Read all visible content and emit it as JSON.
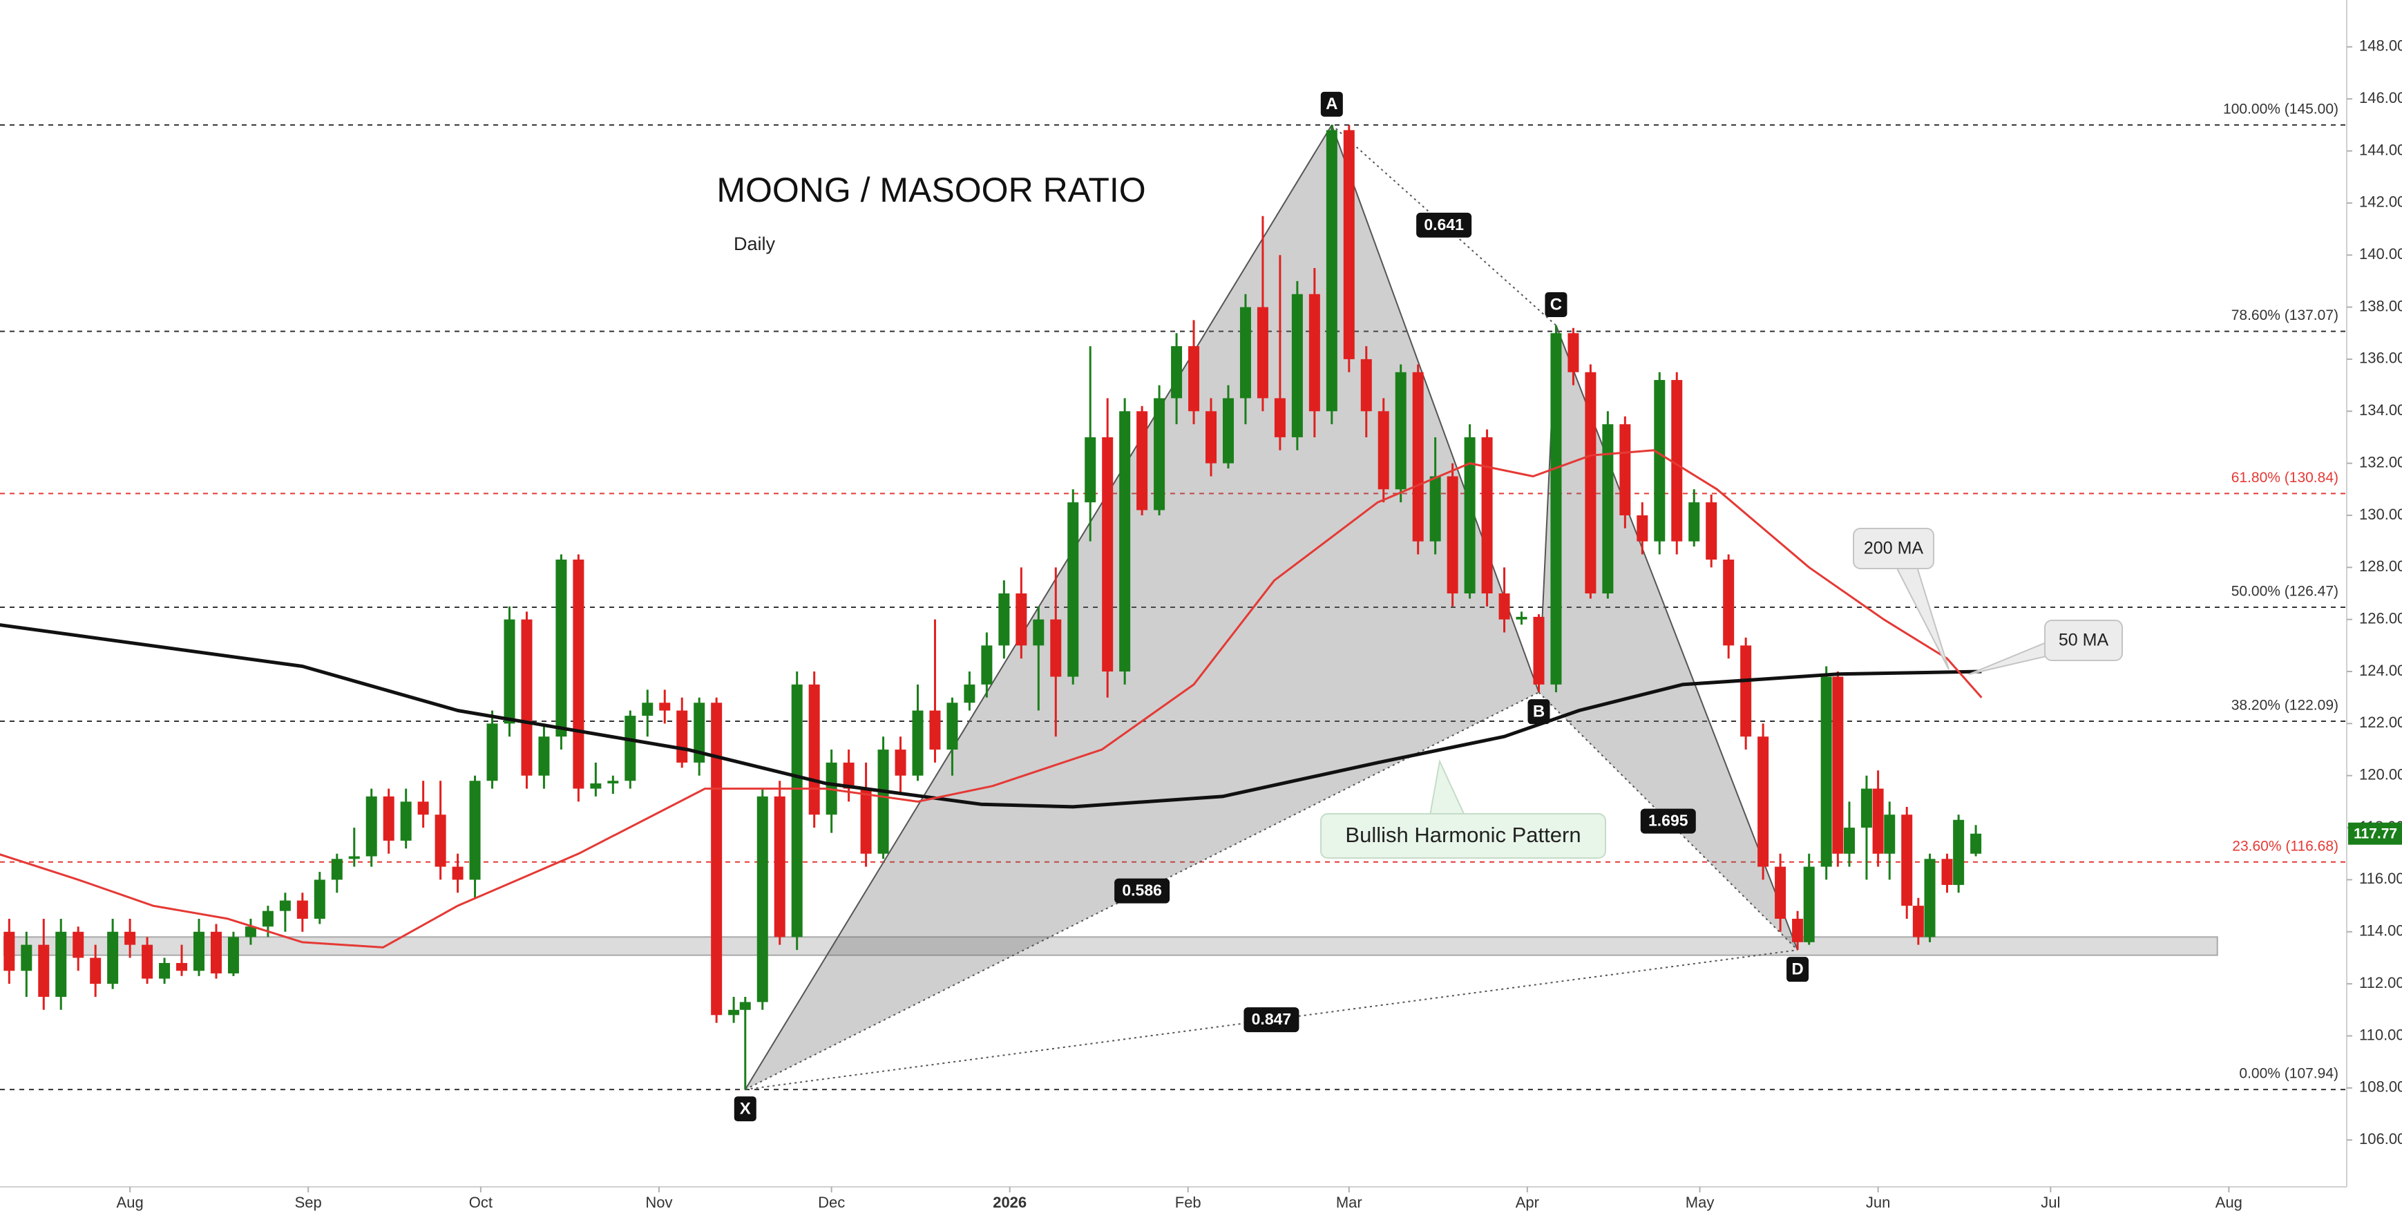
{
  "chart_data": {
    "type": "candlestick",
    "title": "MOONG / MASOOR RATIO",
    "subtitle": "Daily",
    "up_color": "#1a7f1a",
    "down_color": "#e0201f",
    "xlim": [
      8.4,
      416.5
    ],
    "ylim": [
      104.2,
      149.8
    ],
    "xticks": [
      {
        "value": 31,
        "label": "Aug"
      },
      {
        "value": 62,
        "label": "Sep"
      },
      {
        "value": 92,
        "label": "Oct"
      },
      {
        "value": 123,
        "label": "Nov"
      },
      {
        "value": 153,
        "label": "Dec"
      },
      {
        "value": 184,
        "label": "2026"
      },
      {
        "value": 215,
        "label": "Feb"
      },
      {
        "value": 243,
        "label": "Mar"
      },
      {
        "value": 274,
        "label": "Apr"
      },
      {
        "value": 304,
        "label": "May"
      },
      {
        "value": 335,
        "label": "Jun"
      },
      {
        "value": 365,
        "label": "Jul"
      },
      {
        "value": 396,
        "label": "Aug"
      }
    ],
    "yticks": [
      {
        "value": 106,
        "label": "106.00"
      },
      {
        "value": 108,
        "label": "108.00"
      },
      {
        "value": 110,
        "label": "110.00"
      },
      {
        "value": 112,
        "label": "112.00"
      },
      {
        "value": 114,
        "label": "114.00"
      },
      {
        "value": 116,
        "label": "116.00"
      },
      {
        "value": 118,
        "label": "118.00"
      },
      {
        "value": 120,
        "label": "120.00"
      },
      {
        "value": 122,
        "label": "122.00"
      },
      {
        "value": 124,
        "label": "124.00"
      },
      {
        "value": 126,
        "label": "126.00"
      },
      {
        "value": 128,
        "label": "128.00"
      },
      {
        "value": 130,
        "label": "130.00"
      },
      {
        "value": 132,
        "label": "132.00"
      },
      {
        "value": 134,
        "label": "134.00"
      },
      {
        "value": 136,
        "label": "136.00"
      },
      {
        "value": 138,
        "label": "138.00"
      },
      {
        "value": 140,
        "label": "140.00"
      },
      {
        "value": 142,
        "label": "142.00"
      },
      {
        "value": 144,
        "label": "144.00"
      },
      {
        "value": 146,
        "label": "146.00"
      },
      {
        "value": 148,
        "label": "148.00"
      }
    ],
    "candles": {
      "x": [
        10,
        13,
        16,
        19,
        22,
        25,
        28,
        31,
        34,
        37,
        40,
        43,
        46,
        49,
        52,
        55,
        58,
        61,
        64,
        67,
        70,
        73,
        76,
        79,
        82,
        85,
        88,
        91,
        94,
        97,
        100,
        103,
        106,
        109,
        112,
        115,
        118,
        121,
        124,
        127,
        130,
        133,
        136,
        138,
        141,
        144,
        147,
        150,
        153,
        156,
        159,
        162,
        165,
        168,
        171,
        174,
        177,
        180,
        183,
        186,
        189,
        192,
        195,
        198,
        201,
        204,
        207,
        210,
        213,
        216,
        219,
        222,
        225,
        228,
        231,
        234,
        237,
        240,
        243,
        246,
        249,
        252,
        255,
        258,
        261,
        264,
        267,
        270,
        273,
        276,
        279,
        282,
        285,
        288,
        291,
        294,
        297,
        300,
        303,
        306,
        309,
        312,
        315,
        318,
        321,
        323,
        326,
        328,
        330,
        333,
        335,
        337,
        340,
        342,
        344,
        347,
        349,
        352
      ],
      "open": [
        114,
        112.5,
        113.5,
        111.5,
        114,
        113,
        112,
        114,
        113.5,
        112.2,
        112.8,
        112.5,
        114,
        112.4,
        113.8,
        114.2,
        114.8,
        115.2,
        114.5,
        116,
        116.8,
        116.9,
        119.2,
        117.5,
        119,
        118.5,
        116.5,
        116,
        119.8,
        122,
        126,
        120,
        121.5,
        128.3,
        119.5,
        119.7,
        119.8,
        122.3,
        122.8,
        122.5,
        120.5,
        122.8,
        110.8,
        111,
        111.3,
        119.2,
        113.8,
        123.5,
        118.5,
        120.5,
        119.5,
        117,
        121,
        120,
        122.5,
        121,
        122.8,
        123.5,
        125,
        127,
        125,
        126,
        123.8,
        130.5,
        133,
        124,
        134,
        130.2,
        134.5,
        136.5,
        134,
        132,
        134.5,
        138,
        134.5,
        133,
        138.5,
        134,
        144.8,
        136,
        134,
        131,
        135.5,
        129,
        131.5,
        127,
        133,
        127,
        126,
        126.1,
        123.5,
        137,
        135.5,
        127,
        133.5,
        130,
        129,
        135.2,
        129,
        130.5,
        128.3,
        125,
        121.5,
        116.5,
        114.5,
        113.6,
        116.5,
        123.8,
        117,
        118,
        119.5,
        117,
        118.5,
        115,
        113.8,
        116.8,
        115.8,
        117
      ],
      "high": [
        114.5,
        114,
        114.5,
        114.5,
        114.2,
        113.5,
        114.5,
        114.5,
        113.8,
        113,
        113.5,
        114.5,
        114.3,
        114,
        114.5,
        115,
        115.5,
        115.5,
        116.3,
        117,
        118,
        119.5,
        119.5,
        119.5,
        119.8,
        119.8,
        117,
        120,
        122.5,
        126.5,
        126.3,
        122,
        128.5,
        128.5,
        120.5,
        120,
        122.5,
        123.3,
        123.3,
        123,
        123,
        123,
        111.5,
        111.5,
        119.5,
        119.8,
        124,
        124,
        121,
        121,
        120.5,
        121.5,
        121.5,
        123.5,
        126,
        123,
        124,
        125.5,
        127.5,
        128,
        126.5,
        128,
        131,
        136.5,
        134.5,
        134.5,
        134.2,
        135,
        137,
        137.5,
        134.5,
        135,
        138.5,
        141.5,
        140,
        139,
        139.5,
        145,
        145,
        136.5,
        134.5,
        135.8,
        135.8,
        133,
        132,
        133.5,
        133.3,
        128,
        126.3,
        126.2,
        137.3,
        137.2,
        135.8,
        134,
        133.8,
        130.5,
        135.5,
        135.5,
        131,
        130.8,
        128.5,
        125.3,
        122,
        117,
        114.8,
        117,
        124.2,
        124,
        119,
        120,
        120.2,
        119,
        118.8,
        115.3,
        117,
        117,
        118.5,
        118.1
      ],
      "low": [
        112,
        111.5,
        111,
        111,
        112.5,
        111.5,
        111.8,
        113,
        112,
        112,
        112.3,
        112.3,
        112.2,
        112.3,
        113.5,
        113.8,
        114,
        114,
        114.3,
        115.5,
        116.5,
        116.5,
        117,
        117.2,
        118,
        116,
        115.5,
        115.3,
        119.5,
        121.5,
        119.5,
        119.5,
        121,
        119,
        119.2,
        119.3,
        119.5,
        121.5,
        122,
        120.3,
        120,
        110.5,
        110.5,
        107.94,
        111,
        113.5,
        113.3,
        118,
        117.8,
        119,
        116.5,
        116.8,
        119.3,
        119.8,
        120.5,
        120,
        122.5,
        123,
        124.5,
        124.5,
        122.5,
        121.5,
        123.5,
        129,
        123,
        123.5,
        130,
        130,
        133.5,
        133.5,
        131.5,
        131.8,
        133.5,
        134,
        132.5,
        132.5,
        133,
        133.5,
        135.5,
        133,
        130.5,
        130.5,
        128.5,
        128.5,
        126.5,
        126.8,
        126.5,
        125.5,
        125.8,
        123.2,
        123.2,
        135,
        126.8,
        126.8,
        129.5,
        128.5,
        128.5,
        128.5,
        128.8,
        128,
        124.5,
        121,
        116,
        114,
        113.3,
        113.5,
        116,
        116.5,
        116.5,
        116,
        116.5,
        116,
        114.5,
        113.5,
        113.6,
        115.5,
        115.5,
        116.9
      ],
      "close": [
        112.5,
        113.5,
        111.5,
        114,
        113,
        112,
        114,
        113.5,
        112.2,
        112.8,
        112.5,
        114,
        112.4,
        113.8,
        114.2,
        114.8,
        115.2,
        114.5,
        116,
        116.8,
        116.9,
        119.2,
        117.5,
        119,
        118.5,
        116.5,
        116,
        119.8,
        122,
        126,
        120,
        121.5,
        128.3,
        119.5,
        119.7,
        119.8,
        122.3,
        122.8,
        122.5,
        120.5,
        122.8,
        110.8,
        111,
        111.3,
        119.2,
        113.8,
        123.5,
        118.5,
        120.5,
        119.5,
        117,
        121,
        120,
        122.5,
        121,
        122.8,
        123.5,
        125,
        127,
        125,
        126,
        123.8,
        130.5,
        133,
        124,
        134,
        130.2,
        134.5,
        136.5,
        134,
        132,
        134.5,
        138,
        134.5,
        133,
        138.5,
        134,
        144.8,
        136,
        134,
        131,
        135.5,
        129,
        131.5,
        127,
        133,
        127,
        126,
        126.1,
        123.5,
        137,
        135.5,
        127,
        133.5,
        130,
        129,
        135.2,
        129,
        130.5,
        128.3,
        125,
        121.5,
        116.5,
        114.5,
        113.6,
        116.5,
        123.8,
        117,
        118,
        119.5,
        117,
        118.5,
        115,
        113.8,
        116.8,
        115.8,
        118.3,
        117.77
      ]
    },
    "ma_series": [
      {
        "name": "200 MA",
        "color": "#111111",
        "x": [
          8,
          61,
          88,
          128,
          152,
          179,
          195,
          221,
          248,
          270,
          283,
          301,
          328,
          353
        ],
        "values": [
          125.8,
          124.2,
          122.5,
          121,
          119.7,
          118.9,
          118.8,
          119.2,
          120.5,
          121.5,
          122.5,
          123.5,
          123.9,
          124
        ]
      },
      {
        "name": "50 MA",
        "color": "#e53935",
        "x": [
          8,
          22,
          35,
          48,
          61,
          75,
          88,
          109,
          131,
          152,
          168,
          181,
          200,
          216,
          230,
          248,
          264,
          275,
          285,
          296,
          307,
          323,
          336,
          347,
          353
        ],
        "values": [
          117,
          116,
          115,
          114.5,
          113.6,
          113.4,
          115,
          117,
          119.5,
          119.5,
          119,
          119.6,
          121,
          123.5,
          127.5,
          130.5,
          132,
          131.5,
          132.3,
          132.5,
          131,
          128,
          126,
          124.5,
          123
        ]
      }
    ],
    "fib_levels": [
      {
        "label": "100.00% (145.00)",
        "value": 145,
        "color": "#333333"
      },
      {
        "label": "78.60% (137.07)",
        "value": 137.07,
        "color": "#333333"
      },
      {
        "label": "61.80% (130.84)",
        "value": 130.84,
        "color": "#e53935"
      },
      {
        "label": "50.00% (126.47)",
        "value": 126.47,
        "color": "#333333"
      },
      {
        "label": "38.20% (122.09)",
        "value": 122.09,
        "color": "#333333"
      },
      {
        "label": "23.60% (116.68)",
        "value": 116.68,
        "color": "#e53935"
      },
      {
        "label": "0.00% (107.94)",
        "value": 107.94,
        "color": "#333333"
      }
    ],
    "support_zone": {
      "low": 113.1,
      "high": 113.8,
      "x_end": 394
    },
    "pattern_points": [
      {
        "label": "X",
        "x": 138,
        "y": 107.94
      },
      {
        "label": "A",
        "x": 240,
        "y": 145
      },
      {
        "label": "B",
        "x": 276,
        "y": 123.2
      },
      {
        "label": "C",
        "x": 279,
        "y": 137.3
      },
      {
        "label": "D",
        "x": 321,
        "y": 113.3
      }
    ],
    "ratios": [
      0.641,
      0.586,
      1.695,
      0.847
    ],
    "pattern_label": "Bullish Harmonic Pattern"
  }
}
